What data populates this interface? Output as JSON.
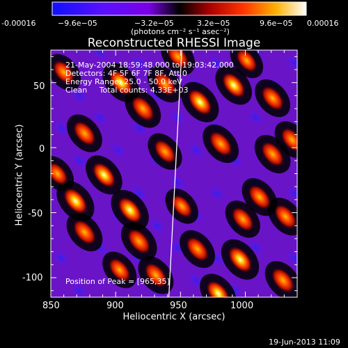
{
  "chart_data": {
    "type": "heatmap",
    "title": "Reconstructed RHESSI Image",
    "xlabel": "Heliocentric X (arcsec)",
    "ylabel": "Heliocentric Y (arcsec)",
    "xlim": [
      850,
      1040
    ],
    "ylim": [
      -115,
      75
    ],
    "x_ticks": [
      "850",
      "900",
      "950",
      "1000"
    ],
    "y_ticks": [
      "50",
      "0",
      "-50",
      "-100"
    ],
    "x_tick_values": [
      850,
      900,
      950,
      1000
    ],
    "y_tick_values": [
      50,
      0,
      -50,
      -100
    ],
    "colorbar": {
      "ticks": [
        "-0.00016",
        "−9.6e−05",
        "−3.2e−05",
        "3.2e−05",
        "9.6e−05",
        "0.00016"
      ],
      "tick_values": [
        -0.00016,
        -9.6e-05,
        -3.2e-05,
        3.2e-05,
        9.6e-05,
        0.00016
      ],
      "min": -0.00016,
      "max": 0.00016,
      "units": "(photons cm⁻² s⁻¹ asec⁻²)",
      "colors": [
        "#1010ff",
        "#7a00e6",
        "#000000",
        "#aa0000",
        "#ff3300",
        "#ffb000",
        "#ffffff"
      ]
    },
    "annotations": [
      "21-May-2004 18:59:48.000 to 19:03:42.000",
      "Detectors: 4F 5F 6F 7F 8F, Att 0",
      "Energy Range: 25.0 - 50.0 keV",
      "Clean     Total counts: 4.33E+03"
    ],
    "peak_label": "Position of Peak = [965,35]",
    "peak": {
      "x": 965,
      "y": 35
    },
    "limb_line": [
      {
        "x": 951,
        "y": 75
      },
      {
        "x": 941,
        "y": -115
      }
    ],
    "blobs": [
      {
        "x": 904,
        "y": 50,
        "v": 0.9
      },
      {
        "x": 921,
        "y": 30,
        "v": 0.85
      },
      {
        "x": 938,
        "y": 49,
        "v": 0.75
      },
      {
        "x": 876,
        "y": 11,
        "v": 0.8
      },
      {
        "x": 869,
        "y": -41,
        "v": 1.0
      },
      {
        "x": 891,
        "y": -21,
        "v": 0.9
      },
      {
        "x": 911,
        "y": -48,
        "v": 1.0
      },
      {
        "x": 876,
        "y": -65,
        "v": 0.85
      },
      {
        "x": 903,
        "y": -94,
        "v": 0.7
      },
      {
        "x": 918,
        "y": -72,
        "v": 0.85
      },
      {
        "x": 931,
        "y": -98,
        "v": 0.8
      },
      {
        "x": 965,
        "y": 35,
        "v": 1.0
      },
      {
        "x": 991,
        "y": 48,
        "v": 0.9
      },
      {
        "x": 981,
        "y": 3,
        "v": 0.85
      },
      {
        "x": 1011,
        "y": -38,
        "v": 0.8
      },
      {
        "x": 1021,
        "y": -5,
        "v": 0.85
      },
      {
        "x": 998,
        "y": -55,
        "v": 0.75
      },
      {
        "x": 1031,
        "y": -53,
        "v": 0.8
      },
      {
        "x": 996,
        "y": -86,
        "v": 1.0
      },
      {
        "x": 963,
        "y": -78,
        "v": 0.8
      },
      {
        "x": 979,
        "y": -112,
        "v": 0.9
      },
      {
        "x": 1029,
        "y": -102,
        "v": 0.85
      },
      {
        "x": 938,
        "y": -3,
        "v": 0.7
      },
      {
        "x": 1036,
        "y": 6,
        "v": 0.75
      },
      {
        "x": 1021,
        "y": 38,
        "v": 0.8
      },
      {
        "x": 951,
        "y": -45,
        "v": 0.6
      },
      {
        "x": 860,
        "y": 58,
        "v": 0.7
      },
      {
        "x": 855,
        "y": -20,
        "v": 0.6
      },
      {
        "x": 948,
        "y": 70,
        "v": 0.7
      },
      {
        "x": 1001,
        "y": 67,
        "v": 0.6
      }
    ]
  },
  "timestamp": "19-Jun-2013 11:09"
}
